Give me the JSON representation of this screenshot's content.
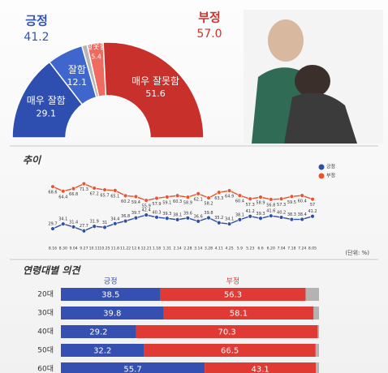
{
  "chart_data": [
    {
      "type": "donut",
      "categories": [
        "매우 잘함",
        "잘함",
        null,
        "잘못함",
        "매우 잘못함"
      ],
      "values": [
        29.1,
        12.1,
        1.8,
        5.4,
        51.6
      ],
      "colors": [
        "#2e4faf",
        "#3e66cc",
        "#b5b5b5",
        "#ef6a5f",
        "#c7302b"
      ],
      "group_names": [
        "긍정",
        "부정"
      ],
      "group_values": [
        41.2,
        57.0
      ],
      "group_value_labels": [
        "41.2",
        "57.0"
      ],
      "group_colors": [
        "#2e55b8",
        "#d3322c"
      ]
    },
    {
      "type": "line",
      "title": "추이",
      "annotation": "(단위: %)",
      "x": [
        "8.16",
        "8.30",
        "9.04",
        "9.27",
        "10.11",
        "10.25",
        "11.8",
        "11.22",
        "12.6",
        "12.21",
        "1.18",
        "1.31",
        "2.14",
        "2.28",
        "3.14",
        "3.28",
        "4.11",
        "4.25",
        "5.9",
        "5.23",
        "6.6",
        "6.20",
        "7.04",
        "7.18",
        "7.24",
        "8.05"
      ],
      "series": [
        {
          "name": "긍정",
          "color": "#2d4fa8",
          "values": [
            29.7,
            34.1,
            31.4,
            27.7,
            31.9,
            31.0,
            34.4,
            36.8,
            39.7,
            42.4,
            40.3,
            39.3,
            38.1,
            39.6,
            36.6,
            39.8,
            35.2,
            34.1,
            38.1,
            41.2,
            39.3,
            41.6,
            40.2,
            38.3,
            38.4,
            41.2
          ]
        },
        {
          "name": "부정",
          "color": "#e8542f",
          "values": [
            68.6,
            64.4,
            66.8,
            71.3,
            67.2,
            65.7,
            65.1,
            60.2,
            59.4,
            55.9,
            57.9,
            59.1,
            60.3,
            58.9,
            62.1,
            58.2,
            63.3,
            64.9,
            60.4,
            57.3,
            58.9,
            56.8,
            57.3,
            59.5,
            60.4,
            57
          ]
        }
      ],
      "ylim": [
        20,
        80
      ]
    },
    {
      "type": "stacked_bar",
      "title": "연령대별 의견",
      "categories": [
        "20대",
        "30대",
        "40대",
        "50대",
        "60대"
      ],
      "series": [
        {
          "name": "긍정",
          "color": "#3550b0",
          "values": [
            38.5,
            39.8,
            29.2,
            32.2,
            55.7
          ]
        },
        {
          "name": "부정",
          "color": "#e03a35",
          "values": [
            56.3,
            58.1,
            70.3,
            66.5,
            43.1
          ]
        },
        {
          "name": null,
          "color": "#b3b3b3",
          "values": [
            5.2,
            2.1,
            0.5,
            1.3,
            1.2
          ]
        }
      ],
      "xlim": [
        0,
        100
      ]
    }
  ]
}
